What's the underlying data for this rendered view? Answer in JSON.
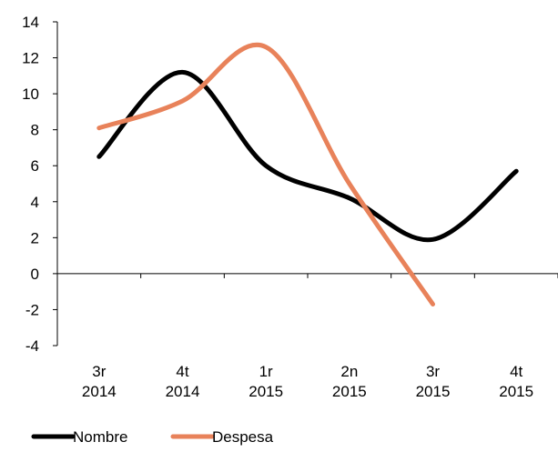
{
  "chart_data": {
    "type": "line",
    "categories": [
      [
        "3r",
        "2014"
      ],
      [
        "4t",
        "2014"
      ],
      [
        "1r",
        "2015"
      ],
      [
        "2n",
        "2015"
      ],
      [
        "3r",
        "2015"
      ],
      [
        "4t",
        "2015"
      ]
    ],
    "yticks": [
      "14",
      "12",
      "10",
      "8",
      "6",
      "4",
      "2",
      "0",
      "-2",
      "-4"
    ],
    "ylim": [
      -4,
      14
    ],
    "grid": false,
    "legend_position": "bottom-left",
    "series": [
      {
        "name": "Nombre",
        "color": "#000000",
        "values": [
          6.5,
          11.2,
          6.0,
          4.2,
          1.9,
          5.7
        ]
      },
      {
        "name": "Despesa",
        "color": "#E8825A",
        "values": [
          8.1,
          9.6,
          12.6,
          5.0,
          -1.7,
          null
        ]
      }
    ]
  }
}
